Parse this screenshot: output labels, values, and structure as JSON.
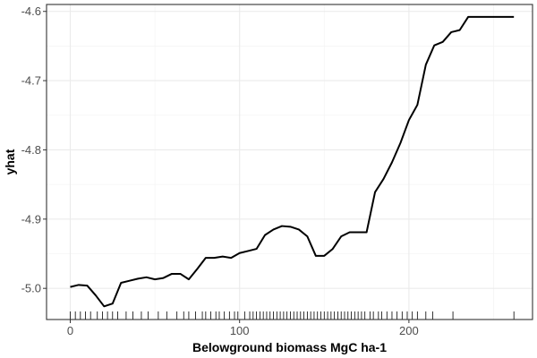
{
  "chart_data": {
    "type": "line",
    "title": "",
    "xlabel": "Belowground biomass MgC ha-1",
    "ylabel": "yhat",
    "xlim": [
      -14,
      273
    ],
    "ylim": [
      -5.045,
      -4.59
    ],
    "x_ticks": [
      0,
      100,
      200
    ],
    "y_ticks": [
      -5.0,
      -4.9,
      -4.8,
      -4.7,
      -4.6
    ],
    "y_tick_labels": [
      "-5.0",
      "-4.9",
      "-4.8",
      "-4.7",
      "-4.6"
    ],
    "grid": true,
    "legend": "none",
    "colors": {
      "line": "#000000",
      "grid_major": "#ebebeb",
      "grid_minor": "#f4f4f4",
      "panel_border": "#333333",
      "rug": "#000000"
    },
    "series": [
      {
        "x": [
          0,
          5,
          10,
          15,
          20,
          25,
          30,
          35,
          40,
          45,
          50,
          55,
          60,
          65,
          70,
          75,
          80,
          85,
          90,
          95,
          100,
          105,
          110,
          115,
          120,
          125,
          130,
          135,
          140,
          145,
          150,
          155,
          160,
          165,
          170,
          175,
          180,
          185,
          190,
          195,
          200,
          205,
          210,
          215,
          220,
          225,
          230,
          235,
          240,
          245,
          250,
          255,
          262
        ],
        "values": [
          -4.998,
          -4.995,
          -4.996,
          -5.01,
          -5.026,
          -5.022,
          -4.992,
          -4.989,
          -4.986,
          -4.984,
          -4.987,
          -4.985,
          -4.979,
          -4.979,
          -4.987,
          -4.972,
          -4.956,
          -4.956,
          -4.954,
          -4.956,
          -4.949,
          -4.946,
          -4.943,
          -4.923,
          -4.915,
          -4.91,
          -4.911,
          -4.915,
          -4.925,
          -4.953,
          -4.953,
          -4.943,
          -4.925,
          -4.919,
          -4.919,
          -4.919,
          -4.861,
          -4.842,
          -4.818,
          -4.79,
          -4.757,
          -4.735,
          -4.677,
          -4.649,
          -4.644,
          -4.63,
          -4.627,
          -4.608,
          -4.608,
          -4.608,
          -4.608,
          -4.608,
          -4.608
        ]
      }
    ],
    "rug_x": [
      0,
      3,
      6,
      9,
      12,
      16,
      19,
      22,
      25,
      28,
      33,
      37,
      42,
      46,
      52,
      57,
      63,
      67,
      70,
      74,
      78,
      80,
      83,
      86,
      88,
      91,
      94,
      97,
      99,
      103,
      106,
      108,
      110,
      112,
      114,
      116,
      118,
      120,
      122,
      124,
      126,
      128,
      130,
      132,
      134,
      136,
      138,
      140,
      142,
      144,
      146,
      148,
      150,
      152,
      154,
      156,
      158,
      160,
      162,
      164,
      166,
      168,
      170,
      172,
      174,
      177,
      179,
      182,
      184,
      187,
      190,
      193,
      196,
      199,
      202,
      205,
      210,
      214,
      226,
      262
    ]
  }
}
